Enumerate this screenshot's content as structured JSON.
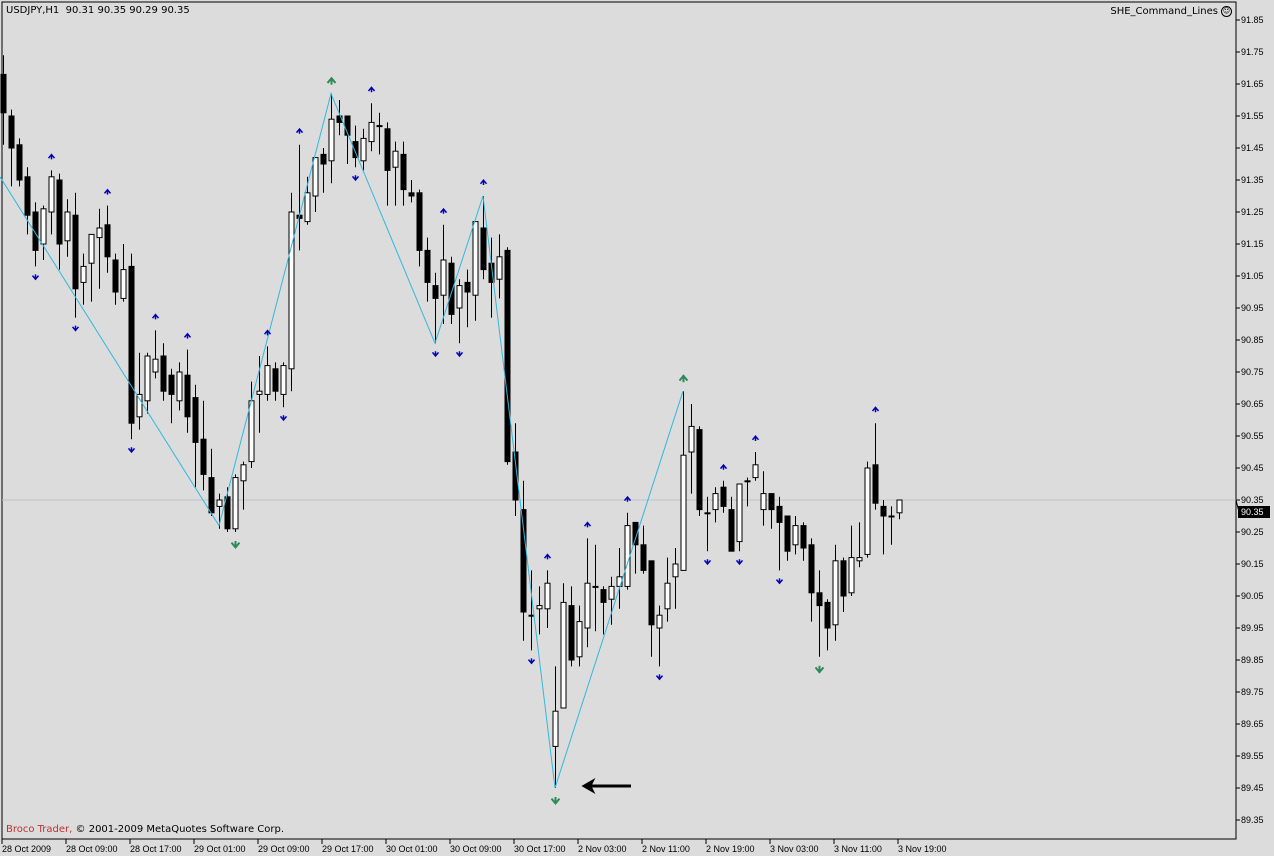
{
  "header": {
    "symbol_timeframe": "USDJPY,H1",
    "ohlc_readout": "90.31 90.35 90.29 90.35"
  },
  "indicator": {
    "name": "SHE_Command_Lines",
    "icon": "smiley-icon"
  },
  "copyright": {
    "broker": "Broco Trader,",
    "text": "© 2001-2009 MetaQuotes Software Corp."
  },
  "colors": {
    "background": "#dcdcdc",
    "zigzag": "#30b8e0",
    "fractal": "#0000c0",
    "extreme_arrow": "#2e8b57",
    "bid_line": "#b8c4cc"
  },
  "chart_data": {
    "type": "candlestick",
    "title": "",
    "ylim": [
      89.3,
      91.9
    ],
    "grid": false,
    "bid": 90.35,
    "bid_label": "90.35",
    "price_ticks": [
      "91.85",
      "91.75",
      "91.65",
      "91.55",
      "91.45",
      "91.35",
      "91.25",
      "91.15",
      "91.05",
      "90.95",
      "90.85",
      "90.75",
      "90.65",
      "90.55",
      "90.45",
      "90.35",
      "90.25",
      "90.15",
      "90.05",
      "89.95",
      "89.85",
      "89.75",
      "89.65",
      "89.55",
      "89.45",
      "89.35"
    ],
    "time_ticks": [
      "28 Oct 2009",
      "28 Oct 09:00",
      "28 Oct 17:00",
      "29 Oct 01:00",
      "29 Oct 09:00",
      "29 Oct 17:00",
      "30 Oct 01:00",
      "30 Oct 09:00",
      "30 Oct 17:00",
      "2 Nov 03:00",
      "2 Nov 11:00",
      "2 Nov 19:00",
      "3 Nov 03:00",
      "3 Nov 11:00",
      "3 Nov 19:00"
    ],
    "ohlc_columns": [
      "open",
      "high",
      "low",
      "close"
    ],
    "ohlc": [
      [
        91.68,
        91.74,
        91.46,
        91.56
      ],
      [
        91.55,
        91.57,
        91.33,
        91.45
      ],
      [
        91.46,
        91.48,
        91.33,
        91.35
      ],
      [
        91.36,
        91.39,
        91.18,
        91.24
      ],
      [
        91.25,
        91.28,
        91.08,
        91.13
      ],
      [
        91.15,
        91.27,
        91.1,
        91.26
      ],
      [
        91.25,
        91.38,
        91.18,
        91.36
      ],
      [
        91.35,
        91.37,
        91.07,
        91.15
      ],
      [
        91.16,
        91.29,
        91.11,
        91.25
      ],
      [
        91.24,
        91.31,
        90.92,
        91.01
      ],
      [
        91.03,
        91.12,
        90.96,
        91.08
      ],
      [
        91.09,
        91.18,
        90.97,
        91.18
      ],
      [
        91.17,
        91.26,
        91.01,
        91.2
      ],
      [
        91.21,
        91.27,
        91.06,
        91.11
      ],
      [
        91.1,
        91.12,
        90.96,
        91.0
      ],
      [
        90.98,
        91.15,
        90.97,
        91.07
      ],
      [
        91.08,
        91.12,
        90.54,
        90.59
      ],
      [
        90.61,
        90.81,
        90.57,
        90.68
      ],
      [
        90.66,
        90.81,
        90.62,
        90.8
      ],
      [
        90.75,
        90.88,
        90.73,
        90.79
      ],
      [
        90.8,
        90.84,
        90.66,
        90.69
      ],
      [
        90.74,
        90.76,
        90.59,
        90.68
      ],
      [
        90.66,
        90.78,
        90.63,
        90.75
      ],
      [
        90.74,
        90.82,
        90.56,
        90.61
      ],
      [
        90.67,
        90.71,
        90.39,
        90.53
      ],
      [
        90.54,
        90.66,
        90.38,
        90.43
      ],
      [
        90.42,
        90.51,
        90.3,
        90.31
      ],
      [
        90.33,
        90.37,
        90.26,
        90.35
      ],
      [
        90.36,
        90.39,
        90.25,
        90.26
      ],
      [
        90.26,
        90.43,
        90.25,
        90.42
      ],
      [
        90.41,
        90.47,
        90.32,
        90.46
      ],
      [
        90.47,
        90.72,
        90.45,
        90.66
      ],
      [
        90.68,
        90.8,
        90.56,
        90.69
      ],
      [
        90.68,
        90.83,
        90.66,
        90.77
      ],
      [
        90.76,
        90.78,
        90.66,
        90.69
      ],
      [
        90.68,
        90.78,
        90.64,
        90.77
      ],
      [
        90.76,
        91.31,
        90.69,
        91.25
      ],
      [
        91.24,
        91.46,
        91.13,
        91.23
      ],
      [
        91.22,
        91.36,
        91.21,
        91.31
      ],
      [
        91.3,
        91.42,
        91.25,
        91.42
      ],
      [
        91.43,
        91.45,
        91.31,
        91.4
      ],
      [
        91.41,
        91.62,
        91.34,
        91.54
      ],
      [
        91.55,
        91.6,
        91.49,
        91.53
      ],
      [
        91.55,
        91.55,
        91.4,
        91.49
      ],
      [
        91.47,
        91.52,
        91.39,
        91.42
      ],
      [
        91.41,
        91.51,
        91.38,
        91.48
      ],
      [
        91.47,
        91.59,
        91.44,
        91.53
      ],
      [
        91.52,
        91.56,
        91.43,
        91.52
      ],
      [
        91.51,
        91.53,
        91.27,
        91.38
      ],
      [
        91.39,
        91.47,
        91.27,
        91.44
      ],
      [
        91.43,
        91.47,
        91.27,
        91.32
      ],
      [
        91.31,
        91.35,
        91.28,
        91.3
      ],
      [
        91.31,
        91.32,
        91.08,
        91.13
      ],
      [
        91.13,
        91.17,
        90.97,
        91.03
      ],
      [
        91.02,
        91.06,
        90.84,
        90.98
      ],
      [
        90.99,
        91.21,
        90.9,
        91.1
      ],
      [
        91.09,
        91.11,
        90.9,
        90.93
      ],
      [
        90.95,
        91.04,
        90.84,
        91.02
      ],
      [
        91.03,
        91.07,
        90.89,
        91.0
      ],
      [
        90.99,
        91.22,
        90.91,
        91.22
      ],
      [
        91.2,
        91.3,
        91.04,
        91.07
      ],
      [
        91.09,
        91.17,
        90.92,
        91.03
      ],
      [
        91.04,
        91.18,
        90.98,
        91.11
      ],
      [
        91.13,
        91.14,
        90.46,
        90.47
      ],
      [
        90.5,
        90.59,
        90.3,
        90.35
      ],
      [
        90.32,
        90.41,
        89.91,
        90.0
      ],
      [
        89.99,
        90.13,
        89.88,
        89.99
      ],
      [
        90.01,
        90.08,
        89.93,
        90.02
      ],
      [
        90.01,
        90.13,
        89.95,
        90.09
      ],
      [
        89.58,
        89.83,
        89.45,
        89.69
      ],
      [
        89.7,
        90.09,
        89.7,
        90.03
      ],
      [
        90.02,
        90.08,
        89.83,
        89.85
      ],
      [
        89.86,
        90.02,
        89.83,
        89.97
      ],
      [
        89.95,
        90.23,
        89.89,
        90.09
      ],
      [
        90.08,
        90.21,
        89.94,
        90.08
      ],
      [
        90.07,
        90.08,
        89.93,
        90.03
      ],
      [
        90.04,
        90.11,
        89.96,
        90.08
      ],
      [
        90.08,
        90.2,
        90.01,
        90.11
      ],
      [
        90.08,
        90.31,
        90.07,
        90.27
      ],
      [
        90.28,
        90.28,
        90.12,
        90.21
      ],
      [
        90.21,
        90.27,
        90.12,
        90.13
      ],
      [
        90.16,
        90.16,
        89.86,
        89.96
      ],
      [
        89.95,
        90.02,
        89.83,
        89.99
      ],
      [
        90.01,
        90.17,
        89.97,
        90.09
      ],
      [
        90.11,
        90.2,
        90.01,
        90.15
      ],
      [
        90.13,
        90.69,
        90.13,
        90.49
      ],
      [
        90.5,
        90.65,
        90.37,
        90.58
      ],
      [
        90.57,
        90.58,
        90.3,
        90.32
      ],
      [
        90.31,
        90.36,
        90.19,
        90.31
      ],
      [
        90.32,
        90.39,
        90.28,
        90.37
      ],
      [
        90.39,
        90.41,
        90.31,
        90.33
      ],
      [
        90.32,
        90.36,
        90.19,
        90.19
      ],
      [
        90.22,
        90.4,
        90.19,
        90.4
      ],
      [
        90.41,
        90.42,
        90.33,
        90.41
      ],
      [
        90.42,
        90.5,
        90.41,
        90.46
      ],
      [
        90.32,
        90.44,
        90.27,
        90.37
      ],
      [
        90.37,
        90.37,
        90.26,
        90.32
      ],
      [
        90.33,
        90.36,
        90.13,
        90.28
      ],
      [
        90.3,
        90.3,
        90.16,
        90.19
      ],
      [
        90.21,
        90.3,
        90.18,
        90.27
      ],
      [
        90.27,
        90.28,
        90.16,
        90.2
      ],
      [
        90.21,
        90.23,
        89.97,
        90.06
      ],
      [
        90.06,
        90.13,
        89.86,
        90.02
      ],
      [
        90.03,
        90.04,
        89.88,
        89.95
      ],
      [
        89.96,
        90.21,
        89.91,
        90.16
      ],
      [
        90.16,
        90.17,
        90.0,
        90.05
      ],
      [
        90.06,
        90.27,
        90.05,
        90.17
      ],
      [
        90.16,
        90.28,
        90.14,
        90.17
      ],
      [
        90.18,
        90.47,
        90.17,
        90.45
      ],
      [
        90.46,
        90.59,
        90.32,
        90.34
      ],
      [
        90.33,
        90.35,
        90.18,
        90.3
      ],
      [
        90.3,
        90.33,
        90.21,
        90.3
      ],
      [
        90.31,
        90.35,
        90.29,
        90.35
      ]
    ],
    "zigzag": [
      [
        0,
        91.36
      ],
      [
        27,
        90.27
      ],
      [
        41,
        91.62
      ],
      [
        54,
        90.84
      ],
      [
        60,
        91.3
      ],
      [
        69,
        89.45
      ],
      [
        85,
        90.69
      ]
    ],
    "fractals_up": [
      6,
      13,
      19,
      23,
      33,
      37,
      46,
      55,
      60,
      68,
      73,
      78,
      90,
      94,
      109
    ],
    "fractals_down": [
      4,
      9,
      16,
      35,
      44,
      54,
      57,
      66,
      82,
      88,
      92,
      97
    ],
    "extreme_up": [
      41,
      85
    ],
    "extreme_down": [
      29,
      69,
      102
    ],
    "annotations": [
      {
        "type": "arrow-left",
        "bar_from": 78.5,
        "bar_to": 72.3,
        "price": 89.45
      }
    ]
  }
}
